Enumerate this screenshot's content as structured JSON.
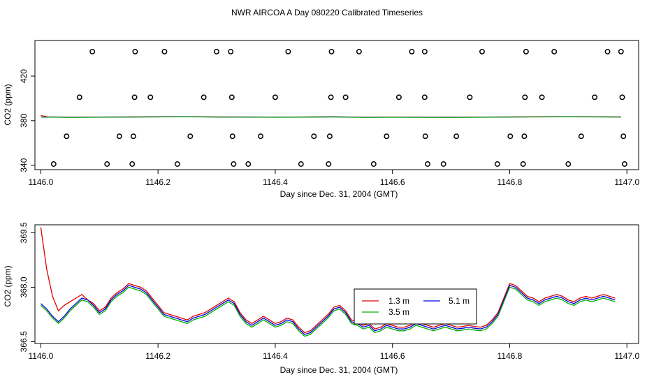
{
  "title": "NWR AIRCOA A  Day 080220  Calibrated Timeseries",
  "colors": {
    "red": "#e00000",
    "blue": "#0000e0",
    "green": "#00b000",
    "axis": "#000000"
  },
  "chart_data": [
    {
      "type": "scatter",
      "xlabel": "Day since Dec. 31, 2004 (GMT)",
      "ylabel": "CO2 (ppm)",
      "xlim": [
        1145.99,
        1147.02
      ],
      "ylim": [
        336,
        452
      ],
      "xticks": [
        1146.0,
        1146.2,
        1146.4,
        1146.6,
        1146.8,
        1147.0
      ],
      "xtick_labels": [
        "1146.0",
        "1146.2",
        "1146.4",
        "1146.6",
        "1146.8",
        "1147.0"
      ],
      "yticks": [
        340,
        380,
        420
      ],
      "ytick_labels": [
        "340",
        "380",
        "420"
      ],
      "points": {
        "x": [
          1146.088,
          1146.161,
          1146.211,
          1146.3,
          1146.324,
          1146.422,
          1146.496,
          1146.543,
          1146.633,
          1146.655,
          1146.753,
          1146.828,
          1146.876,
          1146.967,
          1146.99,
          1146.066,
          1146.16,
          1146.187,
          1146.278,
          1146.326,
          1146.4,
          1146.495,
          1146.52,
          1146.611,
          1146.655,
          1146.732,
          1146.826,
          1146.855,
          1146.945,
          1146.992,
          1146.044,
          1146.134,
          1146.158,
          1146.255,
          1146.327,
          1146.375,
          1146.466,
          1146.493,
          1146.59,
          1146.656,
          1146.709,
          1146.801,
          1146.825,
          1146.922,
          1146.994,
          1146.022,
          1146.113,
          1146.156,
          1146.233,
          1146.329,
          1146.354,
          1146.444,
          1146.491,
          1146.568,
          1146.66,
          1146.687,
          1146.779,
          1146.823,
          1146.9,
          1146.996
        ],
        "y": [
          442,
          442,
          442,
          442,
          442,
          442,
          442,
          442,
          442,
          442,
          442,
          442,
          442,
          442,
          442,
          401,
          401,
          401,
          401,
          401,
          401,
          401,
          401,
          401,
          401,
          401,
          401,
          401,
          401,
          401,
          366,
          366,
          366,
          366,
          366,
          366,
          366,
          366,
          366,
          366,
          366,
          366,
          366,
          366,
          366,
          341,
          341,
          341,
          341,
          341,
          341,
          341,
          341,
          341,
          341,
          341,
          341,
          341,
          341,
          341
        ]
      },
      "series": [
        {
          "color": "red",
          "x": [
            1146.0,
            1146.012,
            1146.05,
            1146.15,
            1146.25,
            1146.3,
            1146.4,
            1146.5,
            1146.55,
            1146.6,
            1146.7,
            1146.75,
            1146.8,
            1146.9,
            1146.99
          ],
          "y": [
            384.6,
            383.4,
            383.1,
            383.4,
            383.6,
            383.4,
            383.2,
            383.5,
            383.1,
            383.2,
            383.1,
            383.2,
            383.4,
            383.6,
            383.4
          ]
        },
        {
          "color": "blue",
          "x": [
            1146.0,
            1146.05,
            1146.15,
            1146.25,
            1146.3,
            1146.4,
            1146.5,
            1146.55,
            1146.6,
            1146.7,
            1146.75,
            1146.8,
            1146.9,
            1146.99
          ],
          "y": [
            383.3,
            383.0,
            383.3,
            383.5,
            383.3,
            383.1,
            383.4,
            383.0,
            383.1,
            383.0,
            383.1,
            383.3,
            383.5,
            383.3
          ]
        },
        {
          "color": "green",
          "x": [
            1146.0,
            1146.05,
            1146.15,
            1146.25,
            1146.3,
            1146.4,
            1146.5,
            1146.55,
            1146.6,
            1146.7,
            1146.75,
            1146.8,
            1146.9,
            1146.99
          ],
          "y": [
            383.2,
            382.9,
            383.2,
            383.4,
            383.2,
            383.0,
            383.3,
            382.9,
            383.0,
            382.9,
            383.0,
            383.2,
            383.4,
            383.2
          ]
        }
      ]
    },
    {
      "type": "line",
      "xlabel": "Day since Dec. 31, 2004 (GMT)",
      "ylabel": "CO2 (ppm)",
      "xlim": [
        1145.99,
        1147.02
      ],
      "ylim": [
        366.45,
        369.72
      ],
      "xticks": [
        1146.0,
        1146.2,
        1146.4,
        1146.6,
        1146.8,
        1147.0
      ],
      "xtick_labels": [
        "1146.0",
        "1146.2",
        "1146.4",
        "1146.6",
        "1146.8",
        "1147.0"
      ],
      "yticks": [
        366.5,
        368.0,
        369.5
      ],
      "ytick_labels": [
        "366.5",
        "368.0",
        "369.5"
      ],
      "legend": {
        "position": "inside-right",
        "entries": [
          {
            "label": "1.3 m",
            "color": "red"
          },
          {
            "label": "5.1 m",
            "color": "blue"
          },
          {
            "label": "3.5 m",
            "color": "green"
          }
        ]
      },
      "x": [
        1146.0,
        1146.01,
        1146.02,
        1146.03,
        1146.04,
        1146.05,
        1146.06,
        1146.07,
        1146.08,
        1146.09,
        1146.1,
        1146.11,
        1146.12,
        1146.13,
        1146.14,
        1146.15,
        1146.16,
        1146.17,
        1146.18,
        1146.19,
        1146.2,
        1146.21,
        1146.22,
        1146.23,
        1146.24,
        1146.25,
        1146.26,
        1146.27,
        1146.28,
        1146.29,
        1146.3,
        1146.31,
        1146.32,
        1146.33,
        1146.34,
        1146.35,
        1146.36,
        1146.37,
        1146.38,
        1146.39,
        1146.4,
        1146.41,
        1146.42,
        1146.43,
        1146.44,
        1146.45,
        1146.46,
        1146.47,
        1146.48,
        1146.49,
        1146.5,
        1146.51,
        1146.52,
        1146.53,
        1146.54,
        1146.55,
        1146.56,
        1146.57,
        1146.58,
        1146.59,
        1146.6,
        1146.61,
        1146.62,
        1146.63,
        1146.64,
        1146.65,
        1146.66,
        1146.67,
        1146.68,
        1146.69,
        1146.7,
        1146.71,
        1146.72,
        1146.73,
        1146.74,
        1146.75,
        1146.76,
        1146.77,
        1146.78,
        1146.79,
        1146.8,
        1146.81,
        1146.82,
        1146.83,
        1146.84,
        1146.85,
        1146.86,
        1146.87,
        1146.88,
        1146.89,
        1146.9,
        1146.91,
        1146.92,
        1146.93,
        1146.94,
        1146.95,
        1146.96,
        1146.97,
        1146.98
      ],
      "series": [
        {
          "name": "1.3 m",
          "color": "red",
          "values": [
            369.65,
            368.5,
            367.75,
            367.35,
            367.5,
            367.6,
            367.7,
            367.8,
            367.65,
            367.55,
            367.35,
            367.45,
            367.7,
            367.85,
            367.95,
            368.1,
            368.05,
            368.0,
            367.9,
            367.7,
            367.5,
            367.3,
            367.25,
            367.2,
            367.15,
            367.1,
            367.2,
            367.25,
            367.3,
            367.4,
            367.5,
            367.6,
            367.7,
            367.6,
            367.3,
            367.1,
            367.0,
            367.1,
            367.2,
            367.1,
            367.0,
            367.05,
            367.15,
            367.1,
            366.9,
            366.75,
            366.8,
            366.95,
            367.1,
            367.25,
            367.45,
            367.5,
            367.35,
            367.1,
            367.05,
            366.95,
            367.0,
            366.85,
            366.9,
            367.0,
            366.95,
            366.9,
            366.9,
            366.95,
            367.05,
            367.0,
            366.95,
            366.9,
            366.95,
            367.0,
            366.95,
            366.9,
            366.92,
            366.95,
            366.92,
            366.9,
            366.95,
            367.1,
            367.3,
            367.7,
            368.1,
            368.05,
            367.9,
            367.75,
            367.7,
            367.6,
            367.7,
            367.75,
            367.8,
            367.75,
            367.65,
            367.6,
            367.7,
            367.75,
            367.7,
            367.75,
            367.8,
            367.75,
            367.7
          ]
        },
        {
          "name": "5.1 m",
          "color": "blue",
          "values": [
            367.55,
            367.4,
            367.2,
            367.05,
            367.2,
            367.4,
            367.55,
            367.7,
            367.65,
            367.5,
            367.3,
            367.4,
            367.65,
            367.8,
            367.9,
            368.05,
            368.0,
            367.95,
            367.85,
            367.65,
            367.45,
            367.25,
            367.2,
            367.15,
            367.1,
            367.05,
            367.15,
            367.2,
            367.25,
            367.35,
            367.45,
            367.55,
            367.65,
            367.55,
            367.25,
            367.05,
            366.95,
            367.05,
            367.15,
            367.05,
            366.95,
            367.0,
            367.1,
            367.05,
            366.85,
            366.7,
            366.75,
            366.9,
            367.05,
            367.2,
            367.4,
            367.45,
            367.3,
            367.05,
            367.0,
            366.9,
            366.95,
            366.8,
            366.85,
            366.95,
            366.9,
            366.85,
            366.85,
            366.9,
            367.0,
            366.95,
            366.9,
            366.85,
            366.9,
            366.95,
            366.9,
            366.85,
            366.87,
            366.9,
            366.87,
            366.85,
            366.9,
            367.05,
            367.25,
            367.65,
            368.05,
            368.0,
            367.85,
            367.7,
            367.65,
            367.55,
            367.65,
            367.7,
            367.75,
            367.7,
            367.6,
            367.55,
            367.65,
            367.7,
            367.65,
            367.7,
            367.75,
            367.7,
            367.65
          ]
        },
        {
          "name": "3.5 m",
          "color": "green",
          "values": [
            367.5,
            367.35,
            367.15,
            367.0,
            367.15,
            367.35,
            367.5,
            367.65,
            367.6,
            367.45,
            367.25,
            367.35,
            367.6,
            367.75,
            367.85,
            368.0,
            367.95,
            367.9,
            367.8,
            367.6,
            367.4,
            367.2,
            367.15,
            367.1,
            367.05,
            367.0,
            367.1,
            367.15,
            367.2,
            367.3,
            367.4,
            367.5,
            367.6,
            367.5,
            367.2,
            367.0,
            366.9,
            367.0,
            367.1,
            367.0,
            366.9,
            366.95,
            367.05,
            367.0,
            366.8,
            366.65,
            366.7,
            366.85,
            367.0,
            367.15,
            367.35,
            367.4,
            367.25,
            367.0,
            366.95,
            366.85,
            366.9,
            366.75,
            366.8,
            366.9,
            366.85,
            366.8,
            366.8,
            366.85,
            366.95,
            366.9,
            366.85,
            366.8,
            366.85,
            366.9,
            366.85,
            366.8,
            366.82,
            366.85,
            366.82,
            366.8,
            366.85,
            367.0,
            367.2,
            367.6,
            368.0,
            367.95,
            367.8,
            367.65,
            367.6,
            367.5,
            367.6,
            367.65,
            367.7,
            367.65,
            367.55,
            367.5,
            367.6,
            367.65,
            367.6,
            367.65,
            367.7,
            367.65,
            367.6
          ]
        }
      ]
    }
  ]
}
